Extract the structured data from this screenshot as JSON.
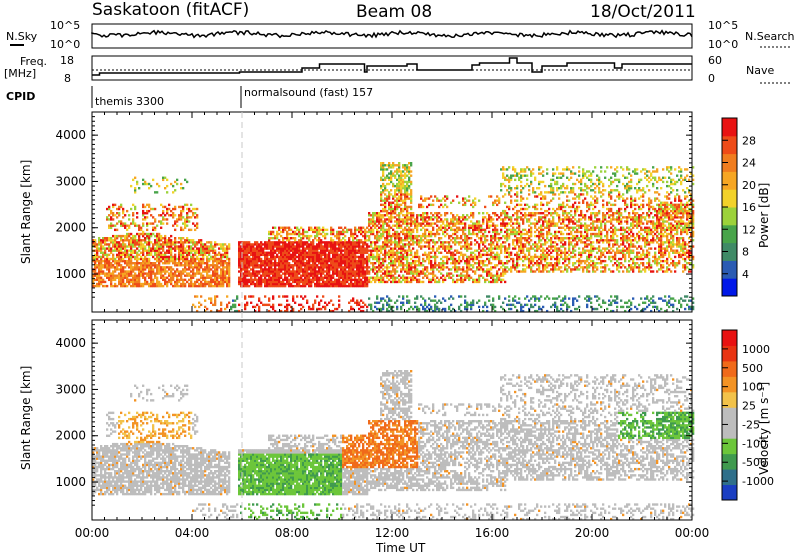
{
  "header": {
    "station": "Saskatoon (fitACF)",
    "beam": "Beam 08",
    "date": "18/Oct/2011"
  },
  "top_panels": {
    "nsky_label": "N.Sky",
    "nsky_hi": "10^5",
    "nsky_lo": "10^0",
    "nsky_right_hi": "10^5",
    "nsky_right_lo": "10^0",
    "nsearch_label": "N.Search",
    "freq_label_1": "Freq.",
    "freq_label_2": "[MHz]",
    "freq_hi": "18",
    "freq_lo": "8",
    "nave_hi": "60",
    "nave_lo": "0",
    "nave_label": "Nave",
    "cpid_label": "CPID",
    "cpid_1": "themis 3300",
    "cpid_2": "normalsound (fast) 157"
  },
  "axes": {
    "ylabel": "Slant Range [km]",
    "xlabel": "Time UT",
    "x_ticks": [
      "00:00",
      "04:00",
      "08:00",
      "12:00",
      "16:00",
      "20:00",
      "00:00"
    ],
    "y_ticks": [
      "1000",
      "2000",
      "3000",
      "4000"
    ]
  },
  "power_colorbar": {
    "label": "Power [dB]",
    "ticks": [
      "4",
      "8",
      "12",
      "16",
      "20",
      "24",
      "28"
    ],
    "colors": [
      "#0018e8",
      "#2a5bb3",
      "#3f8a66",
      "#48a44a",
      "#9cd23a",
      "#f2d22a",
      "#f6a623",
      "#f07d1f",
      "#ee4b18",
      "#e81212"
    ]
  },
  "velocity_colorbar": {
    "label": "Velocity [m s⁻¹]",
    "ticks": [
      "1000",
      "500",
      "100",
      "25",
      "-25",
      "-100",
      "-500",
      "-1000"
    ],
    "colors": [
      "#1a3ec2",
      "#2f6f8a",
      "#3f9a4e",
      "#6cc63a",
      "#bdbdbd",
      "#bdbdbd",
      "#f2c24a",
      "#f39324",
      "#f06a1a",
      "#e83412",
      "#e81212"
    ]
  },
  "chart_data": {
    "type": "heatmap",
    "x_range_hours": [
      0,
      24
    ],
    "y_range_km": [
      180,
      4500
    ],
    "grid": false,
    "panels": [
      "power",
      "velocity"
    ]
  }
}
